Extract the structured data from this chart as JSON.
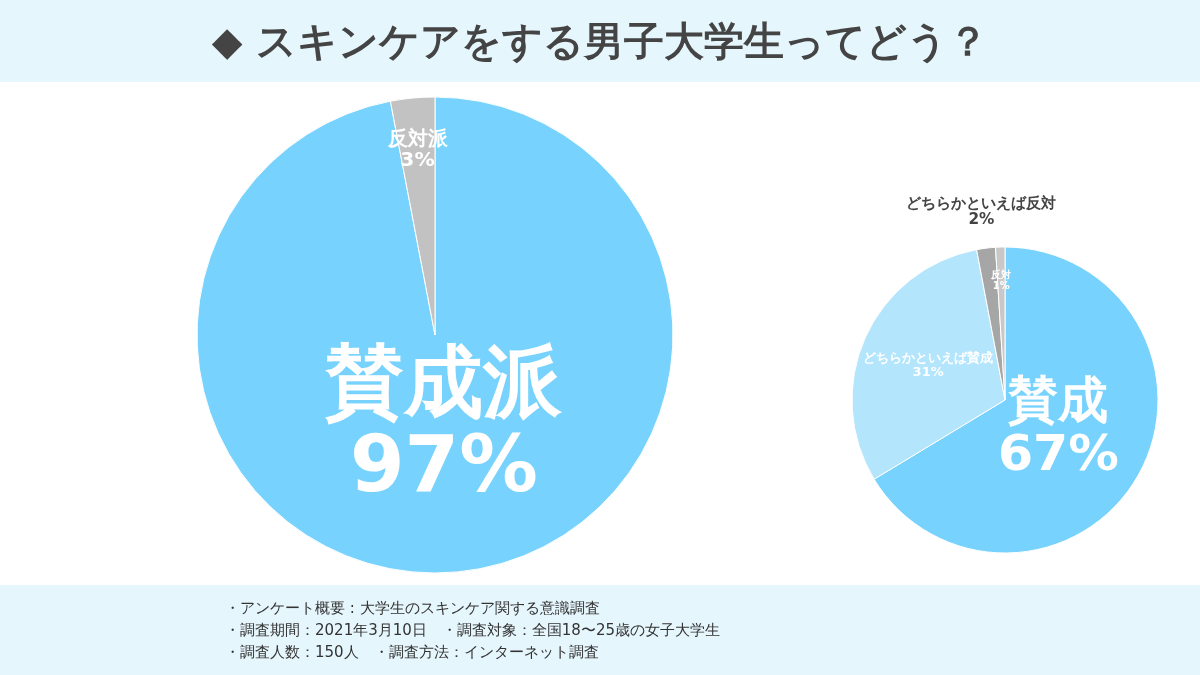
{
  "chart_data": [
    {
      "type": "pie",
      "title": "◆ スキンケアをする男子大学生ってどう？",
      "categories": [
        "賛成派",
        "反対派"
      ],
      "values": [
        97,
        3
      ],
      "value_labels": [
        "97%",
        "3%"
      ],
      "colors": [
        "#77d3fd",
        "#c2c2c2"
      ],
      "legend": false,
      "annotations": [
        "・アンケート概要 : 大学生のスキンケア関する意識調査",
        "・調査期間：2021年3月10日　・調査対象：全国18〜25歳の女子大学生",
        "・調査人数：150人　・調査方法：インターネット調査"
      ]
    },
    {
      "type": "pie",
      "categories": [
        "賛成",
        "どちらかといえば賛成",
        "どちらかといえば反対",
        "反対"
      ],
      "values": [
        67,
        31,
        2,
        1
      ],
      "value_labels": [
        "67%",
        "31%",
        "2%",
        "1%"
      ],
      "colors": [
        "#77d3fd",
        "#b3e5fd",
        "#a6a6a6",
        "#c8c8c8"
      ],
      "legend": false
    }
  ]
}
